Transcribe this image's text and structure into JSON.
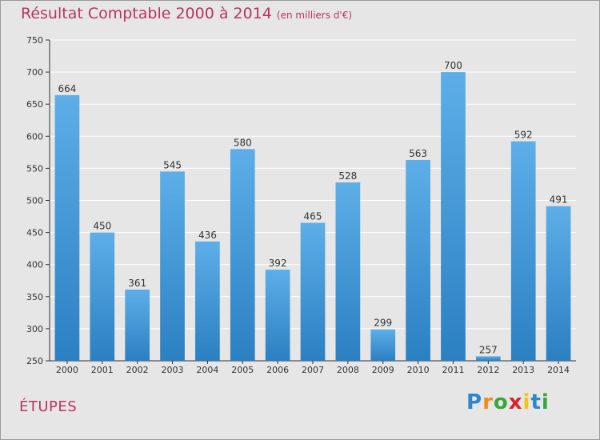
{
  "header": {
    "title": "Résultat Comptable 2000 à 2014",
    "unit": "(en milliers d'€)"
  },
  "footer": {
    "town": "ÉTUPES",
    "logo": {
      "letters": [
        "P",
        "r",
        "o",
        "x",
        "i",
        "t",
        "i"
      ],
      "colors": [
        "#2e86c8",
        "#f08a1c",
        "#3aa63a",
        "#d8232a",
        "#f5c218",
        "#2e86c8",
        "#3aa63a"
      ]
    }
  },
  "colors": {
    "title": "#b8355f",
    "bar_light": "#5daee8",
    "bar_dark": "#2b80c2",
    "plot_bg": "#e6e6e6",
    "grid": "#ffffff"
  },
  "chart_data": {
    "type": "bar",
    "categories": [
      "2000",
      "2001",
      "2002",
      "2003",
      "2004",
      "2005",
      "2006",
      "2007",
      "2008",
      "2009",
      "2010",
      "2011",
      "2012",
      "2013",
      "2014"
    ],
    "values": [
      664,
      450,
      361,
      545,
      436,
      580,
      392,
      465,
      528,
      299,
      563,
      700,
      257,
      592,
      491
    ],
    "data_labels": [
      "664",
      "450",
      "361",
      "545",
      "436",
      "580",
      "392",
      "465",
      "528",
      "299",
      "563",
      "700",
      "257",
      "592",
      "491"
    ],
    "ylim": [
      250,
      750
    ],
    "yticks": [
      "250",
      "300",
      "350",
      "400",
      "450",
      "500",
      "550",
      "600",
      "650",
      "700",
      "750"
    ],
    "grid": true,
    "legend": "none",
    "xlabel": "",
    "ylabel": ""
  }
}
